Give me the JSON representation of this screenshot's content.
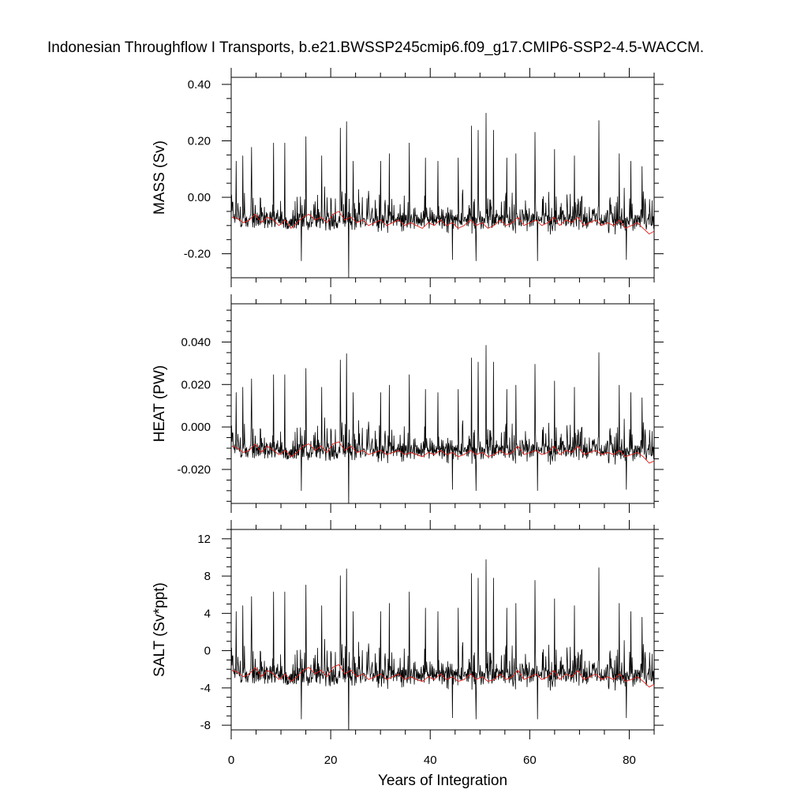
{
  "chart_data": {
    "type": "line",
    "title": "Indonesian Throughflow I Transports, b.e21.BWSSP245cmip6.f09_g17.CMIP6-SSP2-4.5-WACCM.",
    "xlabel": "Years of Integration",
    "xlim": [
      0,
      85
    ],
    "x_ticks": [
      0,
      20,
      40,
      60,
      80
    ],
    "x_tick_labels": [
      "0",
      "20",
      "40",
      "60",
      "80"
    ],
    "x_minor_step": 5,
    "grid": false,
    "colors": {
      "monthly": "#000000",
      "smoothed": "#e0201b"
    },
    "panels": [
      {
        "ylabel": "MASS (Sv)",
        "ylim": [
          -0.285,
          0.425
        ],
        "y_ticks": [
          0.4,
          0.2,
          0.0,
          -0.2
        ],
        "y_tick_labels": [
          "0.40",
          "0.20",
          "0.00",
          "-0.20"
        ],
        "y_minor_step": 0.05,
        "baseline": -0.08,
        "spread_low": -0.18,
        "spread_high": 0.08,
        "series": [
          {
            "x": [
              0,
              1.2,
              2.4,
              3.6,
              4.8,
              6,
              7.2,
              8.4,
              9.6,
              10.8,
              12,
              13.2,
              14.4,
              15.6,
              16.8,
              18,
              19.2,
              20.4,
              21.6,
              22.8,
              24,
              25.2,
              26.4,
              27.6,
              28.8,
              30,
              31.2,
              32.4,
              33.6,
              34.8,
              36,
              37.2,
              38.4,
              39.6,
              40.8,
              42,
              43.2,
              44.4,
              45.6,
              46.8,
              48,
              49.2,
              50.4,
              51.6,
              52.8,
              54,
              55.2,
              56.4,
              57.6,
              58.8,
              60,
              61.2,
              62.4,
              63.6,
              64.8,
              66,
              67.2,
              68.4,
              69.6,
              70.8,
              72,
              73.2,
              74.4,
              75.6,
              76.8,
              78,
              79.2,
              80.4,
              81.6,
              82.8,
              84,
              85
            ],
            "values": [
              -0.07,
              -0.075,
              -0.09,
              -0.08,
              -0.06,
              -0.09,
              -0.07,
              -0.08,
              -0.1,
              -0.08,
              -0.11,
              -0.09,
              -0.07,
              -0.06,
              -0.08,
              -0.07,
              -0.09,
              -0.06,
              -0.05,
              -0.08,
              -0.07,
              -0.09,
              -0.08,
              -0.1,
              -0.09,
              -0.08,
              -0.1,
              -0.09,
              -0.08,
              -0.1,
              -0.09,
              -0.1,
              -0.11,
              -0.09,
              -0.1,
              -0.08,
              -0.1,
              -0.09,
              -0.11,
              -0.1,
              -0.08,
              -0.1,
              -0.09,
              -0.11,
              -0.1,
              -0.08,
              -0.1,
              -0.09,
              -0.07,
              -0.1,
              -0.09,
              -0.08,
              -0.1,
              -0.09,
              -0.07,
              -0.1,
              -0.08,
              -0.09,
              -0.07,
              -0.1,
              -0.09,
              -0.08,
              -0.1,
              -0.09,
              -0.1,
              -0.08,
              -0.11,
              -0.1,
              -0.09,
              -0.11,
              -0.13,
              -0.12
            ]
          }
        ]
      },
      {
        "ylabel": "HEAT (PW)",
        "ylim": [
          -0.036,
          0.058
        ],
        "y_ticks": [
          0.04,
          0.02,
          0.0,
          -0.02
        ],
        "y_tick_labels": [
          "0.040",
          "0.020",
          "0.000",
          "-0.020"
        ],
        "y_minor_step": 0.005,
        "baseline": -0.011,
        "spread_low": -0.024,
        "spread_high": 0.01,
        "series": [
          {
            "x": [
              0,
              1.2,
              2.4,
              3.6,
              4.8,
              6,
              7.2,
              8.4,
              9.6,
              10.8,
              12,
              13.2,
              14.4,
              15.6,
              16.8,
              18,
              19.2,
              20.4,
              21.6,
              22.8,
              24,
              25.2,
              26.4,
              27.6,
              28.8,
              30,
              31.2,
              32.4,
              33.6,
              34.8,
              36,
              37.2,
              38.4,
              39.6,
              40.8,
              42,
              43.2,
              44.4,
              45.6,
              46.8,
              48,
              49.2,
              50.4,
              51.6,
              52.8,
              54,
              55.2,
              56.4,
              57.6,
              58.8,
              60,
              61.2,
              62.4,
              63.6,
              64.8,
              66,
              67.2,
              68.4,
              69.6,
              70.8,
              72,
              73.2,
              74.4,
              75.6,
              76.8,
              78,
              79.2,
              80.4,
              81.6,
              82.8,
              84,
              85
            ],
            "values": [
              -0.009,
              -0.01,
              -0.012,
              -0.011,
              -0.008,
              -0.012,
              -0.009,
              -0.011,
              -0.013,
              -0.011,
              -0.014,
              -0.012,
              -0.009,
              -0.008,
              -0.011,
              -0.009,
              -0.012,
              -0.008,
              -0.007,
              -0.011,
              -0.009,
              -0.012,
              -0.011,
              -0.013,
              -0.012,
              -0.011,
              -0.013,
              -0.012,
              -0.011,
              -0.013,
              -0.012,
              -0.013,
              -0.014,
              -0.012,
              -0.013,
              -0.011,
              -0.013,
              -0.012,
              -0.014,
              -0.013,
              -0.011,
              -0.013,
              -0.012,
              -0.014,
              -0.013,
              -0.011,
              -0.013,
              -0.012,
              -0.009,
              -0.013,
              -0.012,
              -0.011,
              -0.013,
              -0.012,
              -0.009,
              -0.013,
              -0.011,
              -0.012,
              -0.009,
              -0.013,
              -0.012,
              -0.011,
              -0.013,
              -0.012,
              -0.013,
              -0.011,
              -0.014,
              -0.013,
              -0.012,
              -0.014,
              -0.017,
              -0.016
            ]
          }
        ]
      },
      {
        "ylabel": "SALT (Sv*ppt)",
        "ylim": [
          -8.5,
          13
        ],
        "y_ticks": [
          12,
          8,
          4,
          0,
          -4,
          -8
        ],
        "y_tick_labels": [
          "12",
          "8",
          "4",
          "0",
          "-4",
          "-8"
        ],
        "y_minor_step": 1,
        "baseline": -2.6,
        "spread_low": -6,
        "spread_high": 2.5,
        "series": [
          {
            "x": [
              0,
              1.2,
              2.4,
              3.6,
              4.8,
              6,
              7.2,
              8.4,
              9.6,
              10.8,
              12,
              13.2,
              14.4,
              15.6,
              16.8,
              18,
              19.2,
              20.4,
              21.6,
              22.8,
              24,
              25.2,
              26.4,
              27.6,
              28.8,
              30,
              31.2,
              32.4,
              33.6,
              34.8,
              36,
              37.2,
              38.4,
              39.6,
              40.8,
              42,
              43.2,
              44.4,
              45.6,
              46.8,
              48,
              49.2,
              50.4,
              51.6,
              52.8,
              54,
              55.2,
              56.4,
              57.6,
              58.8,
              60,
              61.2,
              62.4,
              63.6,
              64.8,
              66,
              67.2,
              68.4,
              69.6,
              70.8,
              72,
              73.2,
              74.4,
              75.6,
              76.8,
              78,
              79.2,
              80.4,
              81.6,
              82.8,
              84,
              85
            ],
            "values": [
              -2.1,
              -2.3,
              -2.8,
              -2.5,
              -1.8,
              -2.8,
              -2.1,
              -2.5,
              -3.1,
              -2.5,
              -3.3,
              -2.8,
              -2.1,
              -1.8,
              -2.5,
              -2.1,
              -2.8,
              -1.8,
              -1.5,
              -2.5,
              -2.1,
              -2.8,
              -2.5,
              -3.1,
              -2.8,
              -2.5,
              -3.1,
              -2.8,
              -2.5,
              -3.1,
              -2.8,
              -3.1,
              -3.3,
              -2.8,
              -3.1,
              -2.5,
              -3.1,
              -2.8,
              -3.3,
              -3.1,
              -2.5,
              -3.1,
              -2.8,
              -3.3,
              -3.1,
              -2.5,
              -3.1,
              -2.8,
              -2.1,
              -3.1,
              -2.8,
              -2.5,
              -3.1,
              -2.8,
              -2.1,
              -3.1,
              -2.5,
              -2.8,
              -2.1,
              -3.1,
              -2.8,
              -2.5,
              -3.1,
              -2.8,
              -3.1,
              -2.5,
              -3.3,
              -3.1,
              -2.8,
              -3.3,
              -3.9,
              -3.6
            ]
          }
        ]
      }
    ],
    "spikes": [
      {
        "x": 1.0,
        "f": 0.55
      },
      {
        "x": 2.3,
        "f": 0.6
      },
      {
        "x": 4.1,
        "f": 0.68
      },
      {
        "x": 8.5,
        "f": 0.72
      },
      {
        "x": 10.8,
        "f": 0.72
      },
      {
        "x": 15.0,
        "f": 0.78
      },
      {
        "x": 18.2,
        "f": 0.6
      },
      {
        "x": 21.9,
        "f": 0.86
      },
      {
        "x": 23.2,
        "f": 0.92
      },
      {
        "x": 24.5,
        "f": 0.55
      },
      {
        "x": 30.0,
        "f": 0.55
      },
      {
        "x": 31.8,
        "f": 0.62
      },
      {
        "x": 35.8,
        "f": 0.72
      },
      {
        "x": 39.0,
        "f": 0.58
      },
      {
        "x": 41.5,
        "f": 0.55
      },
      {
        "x": 45.6,
        "f": 0.58
      },
      {
        "x": 48.3,
        "f": 0.88
      },
      {
        "x": 49.6,
        "f": 0.84
      },
      {
        "x": 51.2,
        "f": 1.0
      },
      {
        "x": 52.7,
        "f": 0.84
      },
      {
        "x": 55.4,
        "f": 0.58
      },
      {
        "x": 57.2,
        "f": 0.62
      },
      {
        "x": 61.1,
        "f": 0.82
      },
      {
        "x": 65.0,
        "f": 0.66
      },
      {
        "x": 69.0,
        "f": 0.6
      },
      {
        "x": 73.9,
        "f": 0.93
      },
      {
        "x": 78.0,
        "f": 0.62
      },
      {
        "x": 80.3,
        "f": 0.55
      },
      {
        "x": 82.6,
        "f": 0.5
      }
    ],
    "dips": [
      {
        "x": 23.6,
        "f": 1.0
      },
      {
        "x": 14.1,
        "f": 0.7
      },
      {
        "x": 44.5,
        "f": 0.68
      },
      {
        "x": 49.2,
        "f": 0.7
      },
      {
        "x": 61.6,
        "f": 0.7
      },
      {
        "x": 79.4,
        "f": 0.68
      }
    ]
  }
}
